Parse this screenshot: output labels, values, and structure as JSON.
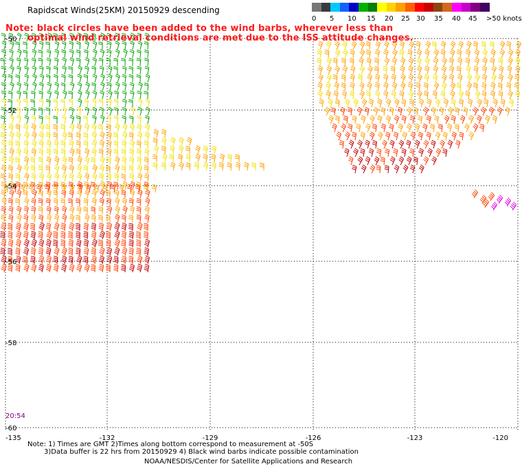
{
  "title": "Rapidscat Winds(25KM) 20150929 descending",
  "note": {
    "line1": "Note: black circles have been added to the wind barbs, wherever less than",
    "line2": "optimal wind retrieval conditions are met due to the ISS attitude changes."
  },
  "legend": {
    "colors": [
      "#777777",
      "#3a3a3a",
      "#00c8ff",
      "#1460ff",
      "#0000c8",
      "#00b000",
      "#008000",
      "#ffff00",
      "#ffd200",
      "#ffa000",
      "#ff6000",
      "#ff0000",
      "#c80000",
      "#8b4513",
      "#d2691e",
      "#ff00ff",
      "#c800c8",
      "#800080",
      "#400060"
    ],
    "ticks": [
      "0",
      "5",
      "10",
      "15",
      "20",
      "25",
      "30",
      "35",
      "40",
      "45",
      ">50 knots"
    ]
  },
  "axes": {
    "x_labels": [
      "-135",
      "-132",
      "-129",
      "-126",
      "-123",
      "-120"
    ],
    "y_labels": [
      "-50",
      "-52",
      "-54",
      "-56",
      "-58",
      "-60"
    ]
  },
  "time_label": "20:54",
  "footer": {
    "line1": "Note: 1) Times are GMT 2)Times along bottom correspond to measurement at -50S",
    "line2": "3)Data buffer is 22 hrs from 20150929 4) Black wind barbs indicate possible contamination",
    "line3": "NOAA/NESDIS/Center for Satellite Applications and Research"
  }
}
